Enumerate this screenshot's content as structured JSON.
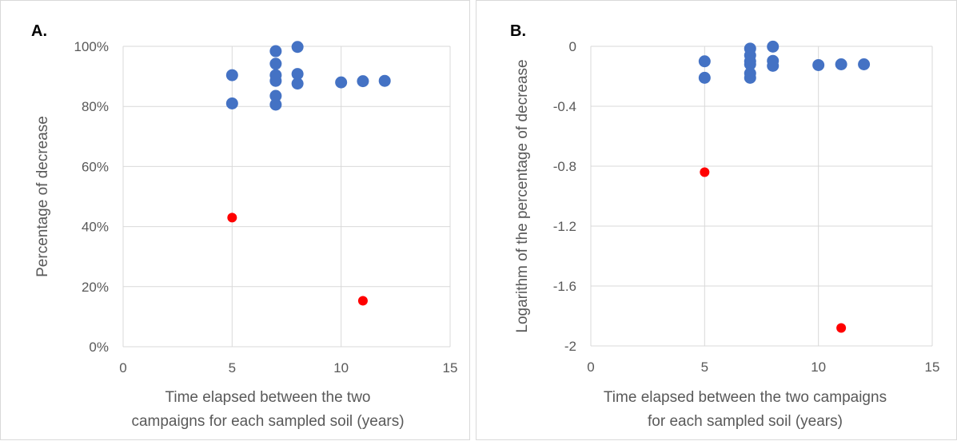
{
  "chart_data": [
    {
      "type": "scatter",
      "panel_label": "A.",
      "title": "",
      "ylabel": "Percentage of decrease",
      "xlabel_lines": [
        "Time elapsed between the two",
        "campaigns for each sampled soil (years)"
      ],
      "xlim": [
        0,
        15
      ],
      "ylim": [
        0,
        1
      ],
      "x_ticks": [
        0,
        5,
        10,
        15
      ],
      "y_ticks": [
        0,
        0.2,
        0.4,
        0.6,
        0.8,
        1.0
      ],
      "y_tick_labels": [
        "0%",
        "20%",
        "40%",
        "60%",
        "80%",
        "100%"
      ],
      "grid": "horizontal",
      "series": [
        {
          "color": "#4472c4",
          "points": [
            [
              5,
              0.904
            ],
            [
              5,
              0.81
            ],
            [
              7,
              0.984
            ],
            [
              7,
              0.942
            ],
            [
              7,
              0.904
            ],
            [
              7,
              0.885
            ],
            [
              7,
              0.835
            ],
            [
              7,
              0.806
            ],
            [
              8,
              0.998
            ],
            [
              8,
              0.908
            ],
            [
              8,
              0.876
            ],
            [
              10,
              0.88
            ],
            [
              11,
              0.884
            ],
            [
              12,
              0.885
            ]
          ]
        },
        {
          "color": "#ff0000",
          "points": [
            [
              5,
              0.43
            ],
            [
              11,
              0.153
            ]
          ]
        }
      ]
    },
    {
      "type": "scatter",
      "panel_label": "B.",
      "title": "",
      "ylabel": "Logarithm of the percentage of decrease",
      "xlabel_lines": [
        "Time elapsed between the two campaigns",
        "for each sampled soil (years)"
      ],
      "xlim": [
        0,
        15
      ],
      "ylim": [
        -2,
        0
      ],
      "x_ticks": [
        0,
        5,
        10,
        15
      ],
      "y_ticks": [
        0,
        -0.4,
        -0.8,
        -1.2,
        -1.6,
        -2
      ],
      "y_tick_labels": [
        "0",
        "-0.4",
        "-0.8",
        "-1.2",
        "-1.6",
        "-2"
      ],
      "grid": "horizontal",
      "series": [
        {
          "color": "#4472c4",
          "points": [
            [
              5,
              -0.1
            ],
            [
              5,
              -0.21
            ],
            [
              7,
              -0.015
            ],
            [
              7,
              -0.06
            ],
            [
              7,
              -0.1
            ],
            [
              7,
              -0.12
            ],
            [
              7,
              -0.18
            ],
            [
              7,
              -0.21
            ],
            [
              8,
              -0.002
            ],
            [
              8,
              -0.097
            ],
            [
              8,
              -0.13
            ],
            [
              10,
              -0.125
            ],
            [
              11,
              -0.12
            ],
            [
              12,
              -0.12
            ]
          ]
        },
        {
          "color": "#ff0000",
          "points": [
            [
              5,
              -0.84
            ],
            [
              11,
              -1.88
            ]
          ]
        }
      ]
    }
  ]
}
